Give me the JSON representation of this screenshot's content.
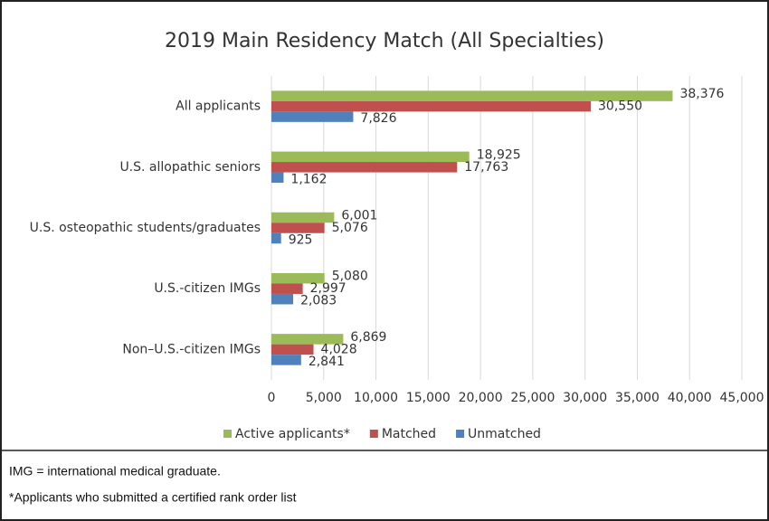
{
  "chart_data": {
    "type": "hbar",
    "title": "2019 Main Residency Match (All Specialties)",
    "categories": [
      "All applicants",
      "U.S. allopathic seniors",
      "U.S. osteopathic students/graduates",
      "U.S.-citizen IMGs",
      "Non–U.S.-citizen IMGs"
    ],
    "series": [
      {
        "name": "Active applicants*",
        "color": "#9bbb59",
        "values": [
          38376,
          18925,
          6001,
          5080,
          6869
        ],
        "value_labels": [
          "38,376",
          "18,925",
          "6,001",
          "5,080",
          "6,869"
        ]
      },
      {
        "name": "Matched",
        "color": "#c0504d",
        "values": [
          30550,
          17763,
          5076,
          2997,
          4028
        ],
        "value_labels": [
          "30,550",
          "17,763",
          "5,076",
          "2,997",
          "4,028"
        ]
      },
      {
        "name": "Unmatched",
        "color": "#4f81bd",
        "values": [
          7826,
          1162,
          925,
          2083,
          2841
        ],
        "value_labels": [
          "7,826",
          "1,162",
          "925",
          "2,083",
          "2,841"
        ]
      }
    ],
    "xlim": [
      0,
      45000
    ],
    "xticks": [
      0,
      {
        "value": 5000,
        "label": "5,000"
      },
      {
        "value": 10000,
        "label": "10,000"
      },
      {
        "value": 15000,
        "label": "15,000"
      },
      {
        "value": 20000,
        "label": "20,000"
      },
      {
        "value": 25000,
        "label": "25,000"
      },
      {
        "value": 30000,
        "label": "30,000"
      },
      {
        "value": 35000,
        "label": "35,000"
      },
      {
        "value": 40000,
        "label": "40,000"
      },
      {
        "value": 45000,
        "label": "45,000"
      }
    ],
    "grid": true,
    "legend": "bottom",
    "notes": [
      "IMG = international medical graduate.",
      "*Applicants who submitted a certified rank order list"
    ]
  }
}
